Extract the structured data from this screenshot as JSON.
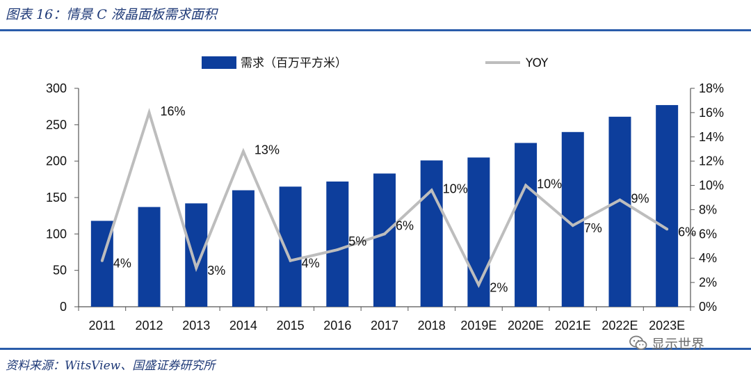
{
  "figure": {
    "title": "图表 16：情景 C 液晶面板需求面积",
    "source": "资料来源：WitsView、国盛证券研究所",
    "watermark": "显示世界"
  },
  "colors": {
    "bar": "#0d3e9c",
    "line": "#bdbdbd",
    "rule": "#2a5caa",
    "title": "#1f3a78"
  },
  "chart_data": {
    "type": "bar",
    "categories": [
      "2011",
      "2012",
      "2013",
      "2014",
      "2015",
      "2016",
      "2017",
      "2018",
      "2019E",
      "2020E",
      "2021E",
      "2022E",
      "2023E"
    ],
    "series": [
      {
        "name": "需求（百万平方米）",
        "type": "bar",
        "axis": "left",
        "values": [
          118,
          137,
          142,
          160,
          165,
          172,
          183,
          201,
          205,
          225,
          240,
          261,
          277
        ]
      },
      {
        "name": "YOY",
        "type": "line",
        "axis": "right",
        "values": [
          3.8,
          16.0,
          3.2,
          12.8,
          3.8,
          4.7,
          6.0,
          9.6,
          1.8,
          10.0,
          6.7,
          8.8,
          6.4
        ],
        "labels": [
          "4%",
          "16%",
          "3%",
          "13%",
          "4%",
          "5%",
          "6%",
          "10%",
          "2%",
          "10%",
          "7%",
          "9%",
          "6%"
        ]
      }
    ],
    "y_left": {
      "min": 0,
      "max": 300,
      "ticks": [
        "0",
        "50",
        "100",
        "150",
        "200",
        "250",
        "300"
      ]
    },
    "y_right": {
      "min": 0,
      "max": 18,
      "ticks": [
        "0%",
        "2%",
        "4%",
        "6%",
        "8%",
        "10%",
        "12%",
        "14%",
        "16%",
        "18%"
      ]
    },
    "legend": {
      "position": "top",
      "items": [
        "需求（百万平方米）",
        "YOY"
      ]
    },
    "grid": false
  }
}
